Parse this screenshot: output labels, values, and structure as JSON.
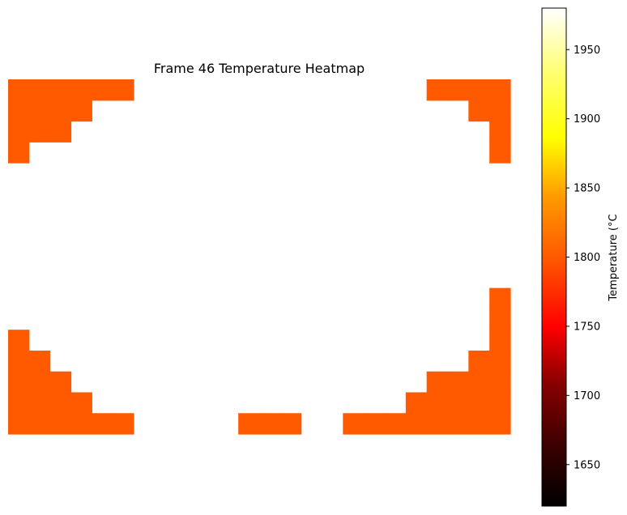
{
  "chart_data": {
    "type": "heatmap",
    "title": "Frame 46 Temperature Heatmap",
    "colorbar": {
      "label": "Temperature (°C",
      "ticks": [
        1650,
        1700,
        1750,
        1800,
        1850,
        1900,
        1950
      ],
      "range": [
        1620,
        1980
      ],
      "colormap": "hot"
    },
    "grid": {
      "rows": 17,
      "cols": 24,
      "cell_value": 1815,
      "cells": [
        [
          0,
          0
        ],
        [
          0,
          1
        ],
        [
          0,
          2
        ],
        [
          0,
          3
        ],
        [
          0,
          4
        ],
        [
          0,
          5
        ],
        [
          0,
          20
        ],
        [
          0,
          21
        ],
        [
          0,
          22
        ],
        [
          0,
          23
        ],
        [
          1,
          0
        ],
        [
          1,
          1
        ],
        [
          1,
          2
        ],
        [
          1,
          3
        ],
        [
          1,
          22
        ],
        [
          1,
          23
        ],
        [
          2,
          0
        ],
        [
          2,
          1
        ],
        [
          2,
          2
        ],
        [
          2,
          23
        ],
        [
          3,
          0
        ],
        [
          3,
          23
        ],
        [
          10,
          23
        ],
        [
          11,
          23
        ],
        [
          12,
          0
        ],
        [
          12,
          23
        ],
        [
          13,
          0
        ],
        [
          13,
          1
        ],
        [
          13,
          22
        ],
        [
          13,
          23
        ],
        [
          14,
          0
        ],
        [
          14,
          1
        ],
        [
          14,
          2
        ],
        [
          14,
          20
        ],
        [
          14,
          21
        ],
        [
          14,
          22
        ],
        [
          14,
          23
        ],
        [
          15,
          0
        ],
        [
          15,
          1
        ],
        [
          15,
          2
        ],
        [
          15,
          3
        ],
        [
          15,
          19
        ],
        [
          15,
          20
        ],
        [
          15,
          21
        ],
        [
          15,
          22
        ],
        [
          15,
          23
        ],
        [
          16,
          0
        ],
        [
          16,
          1
        ],
        [
          16,
          2
        ],
        [
          16,
          3
        ],
        [
          16,
          4
        ],
        [
          16,
          5
        ],
        [
          16,
          11
        ],
        [
          16,
          12
        ],
        [
          16,
          13
        ],
        [
          16,
          16
        ],
        [
          16,
          17
        ],
        [
          16,
          18
        ],
        [
          16,
          19
        ],
        [
          16,
          20
        ],
        [
          16,
          21
        ],
        [
          16,
          22
        ],
        [
          16,
          23
        ]
      ]
    },
    "grid_lines": false,
    "axes_visible": false
  }
}
